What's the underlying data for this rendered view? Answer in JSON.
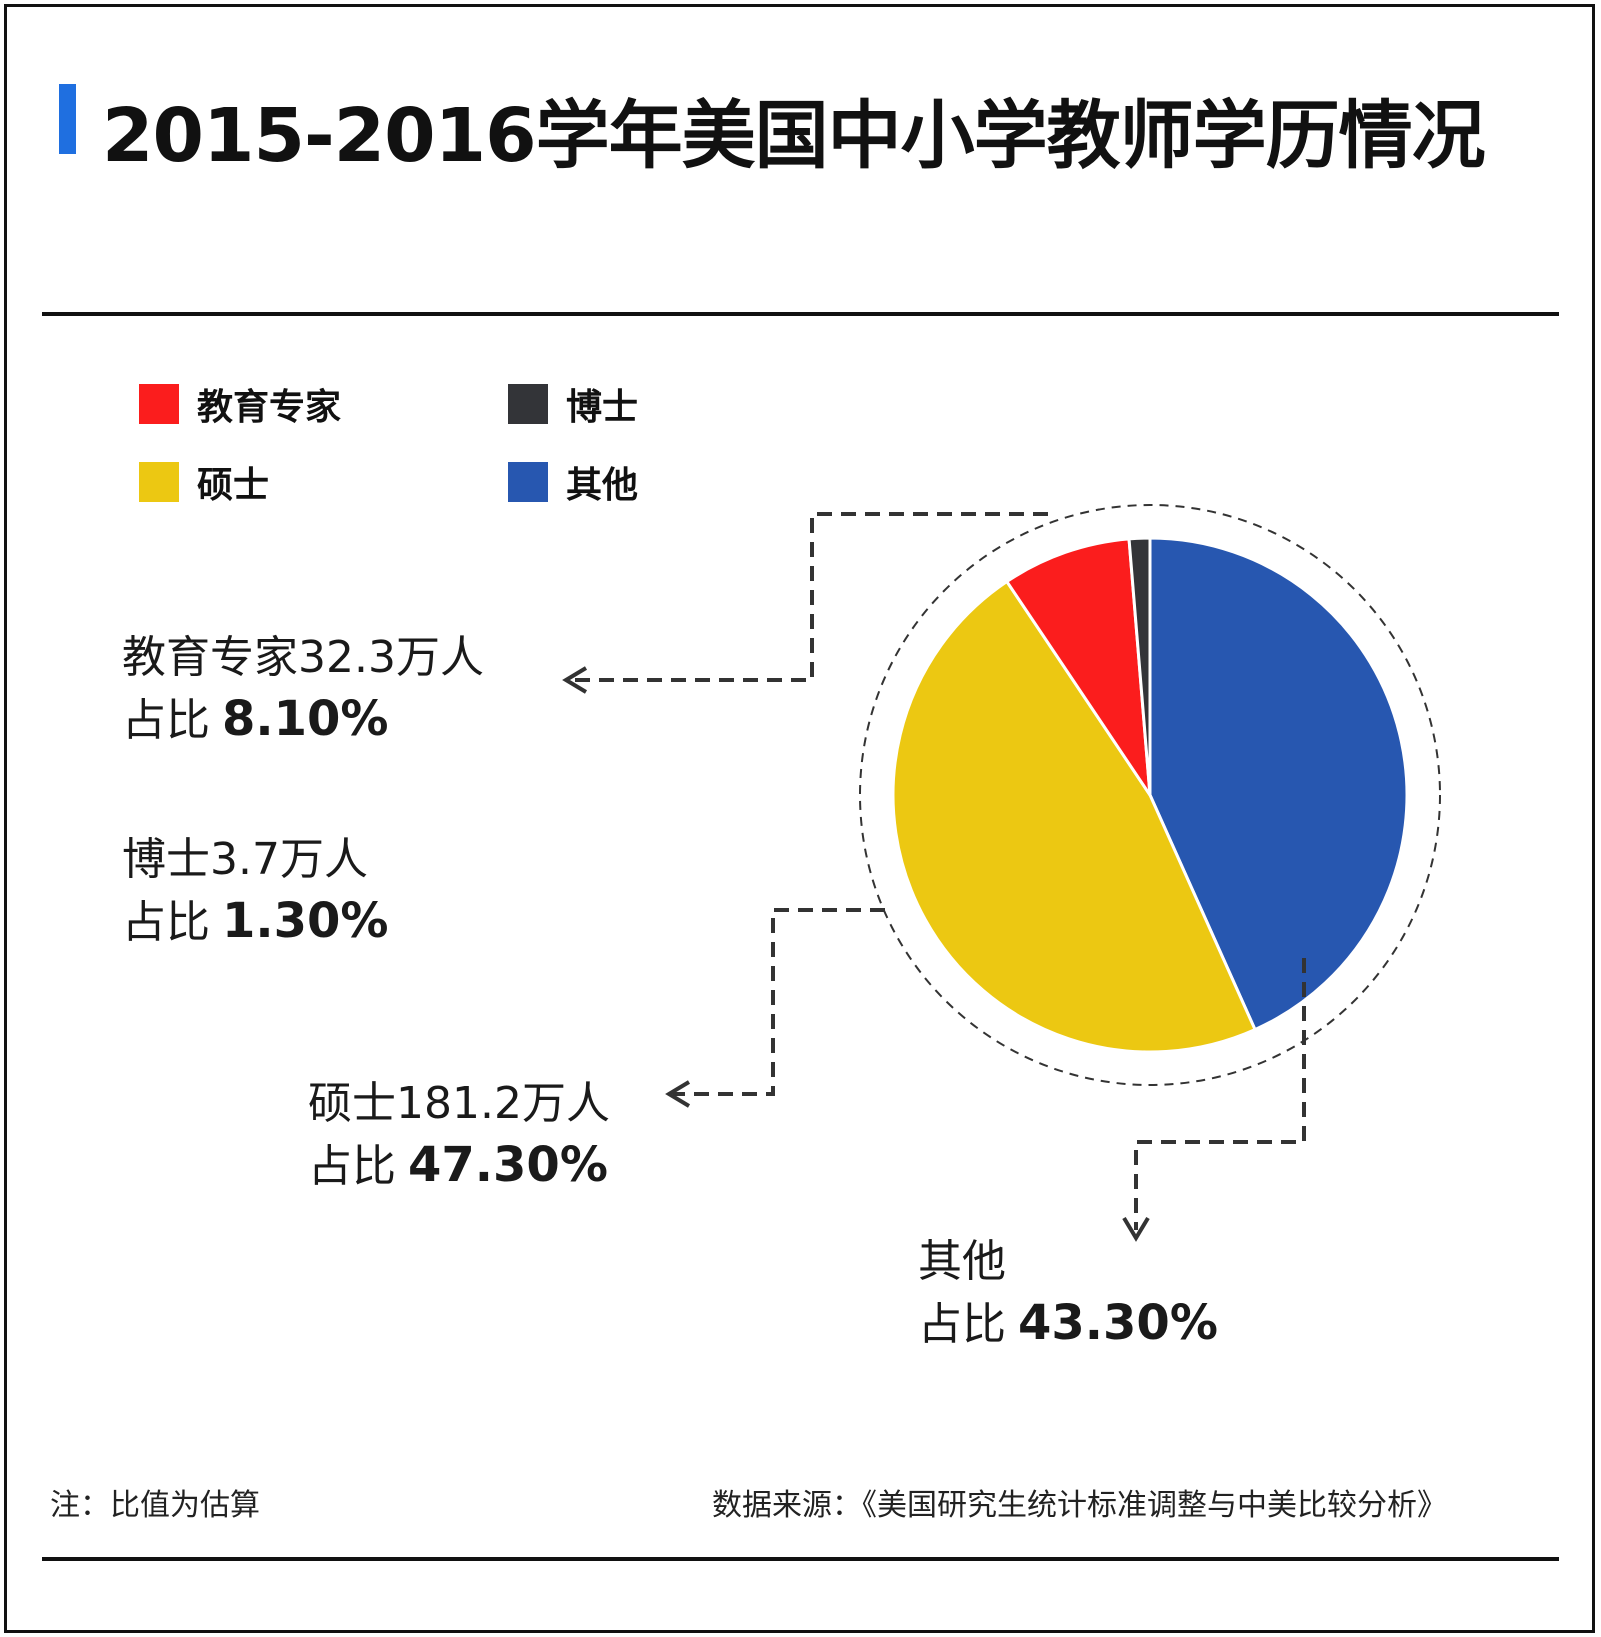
{
  "title": "2015-2016学年美国中小学教师学历情况",
  "colors": {
    "accent": "#1f6fe0",
    "edu_specialist": "#fb1d1d",
    "doctor": "#333438",
    "master": "#ecc812",
    "other": "#2757b0"
  },
  "legend": [
    {
      "label": "教育专家",
      "color": "#fb1d1d"
    },
    {
      "label": "博士",
      "color": "#333438"
    },
    {
      "label": "硕士",
      "color": "#ecc812"
    },
    {
      "label": "其他",
      "color": "#2757b0"
    }
  ],
  "callouts": {
    "edu_specialist": {
      "line1": "教育专家32.3万人",
      "prefix": "占比",
      "pct": "8.10%"
    },
    "doctor": {
      "line1": "博士3.7万人",
      "prefix": "占比",
      "pct": "1.30%"
    },
    "master": {
      "line1": "硕士181.2万人",
      "prefix": "占比",
      "pct": "47.30%"
    },
    "other": {
      "line1": "其他",
      "prefix": "占比",
      "pct": "43.30%"
    }
  },
  "footer": {
    "note": "注：比值为估算",
    "source": "数据来源：《美国研究生统计标准调整与中美比较分析》"
  },
  "chart_data": {
    "type": "pie",
    "slices": [
      {
        "label": "其他",
        "value": 43.3,
        "count": "",
        "color": "#2757b0"
      },
      {
        "label": "硕士",
        "value": 47.3,
        "count": "181.2万人",
        "color": "#ecc812"
      },
      {
        "label": "教育专家",
        "value": 8.1,
        "count": "32.3万人",
        "color": "#fb1d1d"
      },
      {
        "label": "博士",
        "value": 1.3,
        "count": "3.7万人",
        "color": "#333438"
      }
    ],
    "start_angle_deg": 0,
    "direction": "clockwise",
    "legend_position": "top-left"
  }
}
